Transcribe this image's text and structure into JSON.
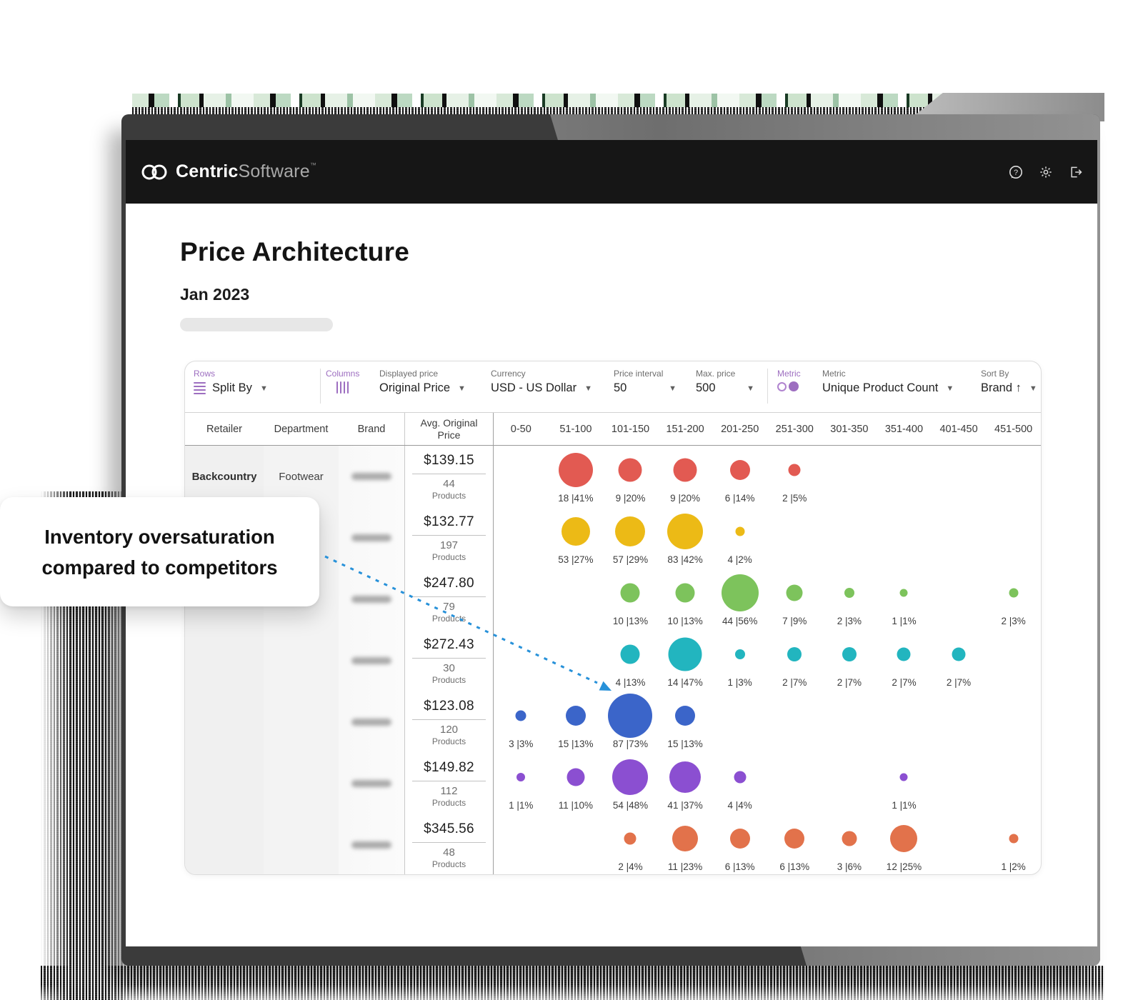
{
  "app": {
    "brand_bold": "Centric",
    "brand_light": "Software",
    "trademark": "™",
    "header_icons": [
      "help-icon",
      "settings-icon",
      "logout-icon"
    ]
  },
  "page": {
    "title": "Price Architecture",
    "subtitle": "Jan 2023"
  },
  "callout": {
    "text": "Inventory oversaturation compared to competitors",
    "arrow_color": "#2791d9"
  },
  "toolbar": {
    "rows_label": "Rows",
    "split_by": "Split By",
    "columns_label": "Columns",
    "displayed_price_label": "Displayed price",
    "displayed_price_value": "Original Price",
    "currency_label": "Currency",
    "currency_value": "USD - US Dollar",
    "price_interval_label": "Price interval",
    "price_interval_value": "50",
    "max_price_label": "Max. price",
    "max_price_value": "500",
    "metric_badge": "Metric",
    "metric_label": "Metric",
    "metric_value": "Unique Product Count",
    "sort_by_label": "Sort By",
    "sort_by_value": "Brand ↑",
    "accent_purple": "#9d6ec0"
  },
  "table": {
    "headers": {
      "retailer": "Retailer",
      "department": "Department",
      "brand": "Brand",
      "price": "Avg. Original Price"
    },
    "first_row": {
      "retailer": "Backcountry",
      "department": "Footwear"
    },
    "products_word": "Products",
    "brand_column_redacted": true
  },
  "chart_data": {
    "type": "bubble-matrix",
    "title": "Price Architecture — Unique Product Count by price interval",
    "columns": [
      "0-50",
      "51-100",
      "101-150",
      "151-200",
      "201-250",
      "251-300",
      "301-350",
      "351-400",
      "401-450",
      "451-500"
    ],
    "column_unit": "USD price interval",
    "label_format": "count |percent%",
    "rows": [
      {
        "avg_price": "$139.15",
        "products": 44,
        "color": "#e25a52",
        "bubbles": [
          {
            "col": 1,
            "count": 18,
            "pct": 41,
            "label": "18 |41%",
            "size": 48
          },
          {
            "col": 2,
            "count": 9,
            "pct": 20,
            "label": "9 |20%",
            "size": 33
          },
          {
            "col": 3,
            "count": 9,
            "pct": 20,
            "label": "9 |20%",
            "size": 33
          },
          {
            "col": 4,
            "count": 6,
            "pct": 14,
            "label": "6 |14%",
            "size": 28
          },
          {
            "col": 5,
            "count": 2,
            "pct": 5,
            "label": "2 |5%",
            "size": 17
          }
        ]
      },
      {
        "avg_price": "$132.77",
        "products": 197,
        "color": "#ecba16",
        "bubbles": [
          {
            "col": 1,
            "count": 53,
            "pct": 27,
            "label": "53 |27%",
            "size": 40
          },
          {
            "col": 2,
            "count": 57,
            "pct": 29,
            "label": "57 |29%",
            "size": 42
          },
          {
            "col": 3,
            "count": 83,
            "pct": 42,
            "label": "83 |42%",
            "size": 50
          },
          {
            "col": 4,
            "count": 4,
            "pct": 2,
            "label": "4 |2%",
            "size": 13
          }
        ]
      },
      {
        "avg_price": "$247.80",
        "products": 79,
        "color": "#7dc35c",
        "bubbles": [
          {
            "col": 2,
            "count": 10,
            "pct": 13,
            "label": "10 |13%",
            "size": 27
          },
          {
            "col": 3,
            "count": 10,
            "pct": 13,
            "label": "10 |13%",
            "size": 27
          },
          {
            "col": 4,
            "count": 44,
            "pct": 56,
            "label": "44 |56%",
            "size": 52
          },
          {
            "col": 5,
            "count": 7,
            "pct": 9,
            "label": "7 |9%",
            "size": 23
          },
          {
            "col": 6,
            "count": 2,
            "pct": 3,
            "label": "2 |3%",
            "size": 14
          },
          {
            "col": 7,
            "count": 1,
            "pct": 1,
            "label": "1 |1%",
            "size": 11
          },
          {
            "col": 9,
            "count": 2,
            "pct": 3,
            "label": "2 |3%",
            "size": 13
          }
        ]
      },
      {
        "avg_price": "$272.43",
        "products": 30,
        "color": "#22b5bf",
        "bubbles": [
          {
            "col": 2,
            "count": 4,
            "pct": 13,
            "label": "4 |13%",
            "size": 27
          },
          {
            "col": 3,
            "count": 14,
            "pct": 47,
            "label": "14 |47%",
            "size": 47
          },
          {
            "col": 4,
            "count": 1,
            "pct": 3,
            "label": "1 |3%",
            "size": 14
          },
          {
            "col": 5,
            "count": 2,
            "pct": 7,
            "label": "2 |7%",
            "size": 20
          },
          {
            "col": 6,
            "count": 2,
            "pct": 7,
            "label": "2 |7%",
            "size": 20
          },
          {
            "col": 7,
            "count": 2,
            "pct": 7,
            "label": "2 |7%",
            "size": 19
          },
          {
            "col": 8,
            "count": 2,
            "pct": 7,
            "label": "2 |7%",
            "size": 19
          }
        ]
      },
      {
        "avg_price": "$123.08",
        "products": 120,
        "color": "#3b65c9",
        "bubbles": [
          {
            "col": 0,
            "count": 3,
            "pct": 3,
            "label": "3 |3%",
            "size": 15
          },
          {
            "col": 1,
            "count": 15,
            "pct": 13,
            "label": "15 |13%",
            "size": 28
          },
          {
            "col": 2,
            "count": 87,
            "pct": 73,
            "label": "87 |73%",
            "size": 62
          },
          {
            "col": 3,
            "count": 15,
            "pct": 13,
            "label": "15 |13%",
            "size": 28
          }
        ]
      },
      {
        "avg_price": "$149.82",
        "products": 112,
        "color": "#8b4fd1",
        "bubbles": [
          {
            "col": 0,
            "count": 1,
            "pct": 1,
            "label": "1 |1%",
            "size": 12
          },
          {
            "col": 1,
            "count": 11,
            "pct": 10,
            "label": "11 |10%",
            "size": 25
          },
          {
            "col": 2,
            "count": 54,
            "pct": 48,
            "label": "54 |48%",
            "size": 50
          },
          {
            "col": 3,
            "count": 41,
            "pct": 37,
            "label": "41 |37%",
            "size": 44
          },
          {
            "col": 4,
            "count": 4,
            "pct": 4,
            "label": "4 |4%",
            "size": 17
          },
          {
            "col": 7,
            "count": 1,
            "pct": 1,
            "label": "1 |1%",
            "size": 11
          }
        ]
      },
      {
        "avg_price": "$345.56",
        "products": 48,
        "color": "#e2724b",
        "bubbles": [
          {
            "col": 2,
            "count": 2,
            "pct": 4,
            "label": "2 |4%",
            "size": 17
          },
          {
            "col": 3,
            "count": 11,
            "pct": 23,
            "label": "11 |23%",
            "size": 36
          },
          {
            "col": 4,
            "count": 6,
            "pct": 13,
            "label": "6 |13%",
            "size": 28
          },
          {
            "col": 5,
            "count": 6,
            "pct": 13,
            "label": "6 |13%",
            "size": 28
          },
          {
            "col": 6,
            "count": 3,
            "pct": 6,
            "label": "3 |6%",
            "size": 21
          },
          {
            "col": 7,
            "count": 12,
            "pct": 25,
            "label": "12 |25%",
            "size": 38
          },
          {
            "col": 9,
            "count": 1,
            "pct": 2,
            "label": "1 |2%",
            "size": 13
          }
        ]
      }
    ]
  }
}
